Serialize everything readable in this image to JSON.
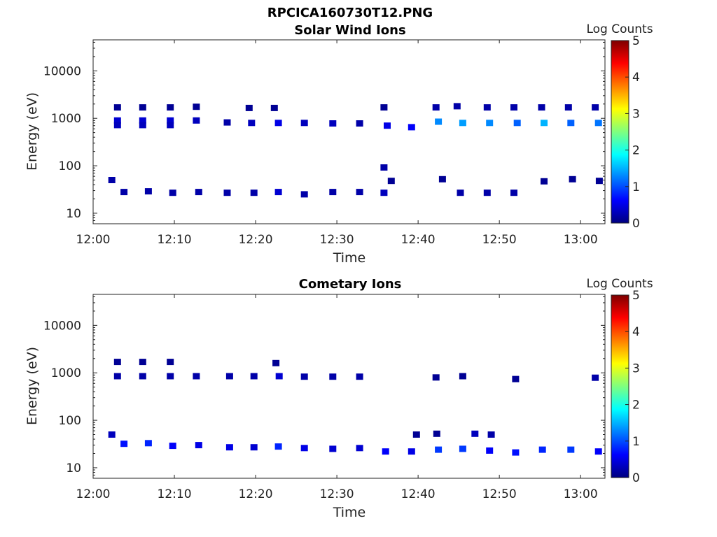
{
  "figure": {
    "main_title": "RPCICA160730T12.PNG"
  },
  "chart_data": [
    {
      "type": "heatmap",
      "title": "Solar Wind Ions",
      "xlabel": "Time",
      "ylabel": "Energy (eV)",
      "x_ticks": [
        "12:00",
        "12:10",
        "12:20",
        "12:30",
        "12:40",
        "12:50",
        "13:00"
      ],
      "x_range_minutes": [
        0,
        63
      ],
      "y_scale": "log",
      "y_range": [
        6,
        45000
      ],
      "y_ticks": [
        "10",
        "100",
        "1000",
        "10000"
      ],
      "colorbar": {
        "label": "Log Counts",
        "range": [
          0,
          5
        ],
        "ticks": [
          "0",
          "1",
          "2",
          "3",
          "4",
          "5"
        ]
      },
      "cells": [
        [
          3,
          1700,
          0.1
        ],
        [
          3,
          900,
          0.4
        ],
        [
          3,
          720,
          0.3
        ],
        [
          6.1,
          1700,
          0.1
        ],
        [
          6.1,
          900,
          0.4
        ],
        [
          6.1,
          720,
          0.3
        ],
        [
          9.5,
          1700,
          0.1
        ],
        [
          9.5,
          900,
          0.4
        ],
        [
          9.5,
          720,
          0.3
        ],
        [
          12.7,
          1750,
          0.1
        ],
        [
          12.7,
          900,
          0.3
        ],
        [
          16.5,
          820,
          0.2
        ],
        [
          19.2,
          1650,
          0.1
        ],
        [
          19.5,
          800,
          0.3
        ],
        [
          22.3,
          1650,
          0.1
        ],
        [
          22.8,
          800,
          0.5
        ],
        [
          26,
          800,
          0.3
        ],
        [
          29.5,
          780,
          0.3
        ],
        [
          32.8,
          780,
          0.2
        ],
        [
          35.8,
          1700,
          0.1
        ],
        [
          36.2,
          700,
          0.5
        ],
        [
          39.2,
          650,
          0.6
        ],
        [
          42.5,
          850,
          1.3
        ],
        [
          45.5,
          800,
          1.4
        ],
        [
          48.8,
          800,
          1.3
        ],
        [
          52.2,
          800,
          1.1
        ],
        [
          55.5,
          800,
          1.5
        ],
        [
          58.8,
          800,
          1.1
        ],
        [
          62.2,
          800,
          1.2
        ],
        [
          42.2,
          1700,
          0.2
        ],
        [
          44.8,
          1800,
          0.2
        ],
        [
          48.5,
          1700,
          0.2
        ],
        [
          51.8,
          1700,
          0.2
        ],
        [
          55.2,
          1700,
          0.2
        ],
        [
          58.5,
          1700,
          0.2
        ],
        [
          61.8,
          1700,
          0.2
        ],
        [
          2.3,
          50,
          0.2
        ],
        [
          3.8,
          28,
          0.2
        ],
        [
          6.8,
          29,
          0.2
        ],
        [
          9.8,
          27,
          0.2
        ],
        [
          13,
          28,
          0.2
        ],
        [
          16.5,
          27,
          0.2
        ],
        [
          19.8,
          27,
          0.2
        ],
        [
          22.8,
          28,
          0.4
        ],
        [
          26,
          25,
          0.2
        ],
        [
          29.5,
          28,
          0.2
        ],
        [
          32.8,
          28,
          0.2
        ],
        [
          35.8,
          92,
          0.2
        ],
        [
          35.8,
          27,
          0.3
        ],
        [
          36.7,
          48,
          0.1
        ],
        [
          43,
          52,
          0.1
        ],
        [
          45.2,
          27,
          0.2
        ],
        [
          48.5,
          27,
          0.2
        ],
        [
          51.8,
          27,
          0.2
        ],
        [
          55.5,
          47,
          0.1
        ],
        [
          59,
          52,
          0.1
        ],
        [
          62.3,
          48,
          0.1
        ]
      ]
    },
    {
      "type": "heatmap",
      "title": "Cometary Ions",
      "xlabel": "Time",
      "ylabel": "Energy (eV)",
      "x_ticks": [
        "12:00",
        "12:10",
        "12:20",
        "12:30",
        "12:40",
        "12:50",
        "13:00"
      ],
      "x_range_minutes": [
        0,
        63
      ],
      "y_scale": "log",
      "y_range": [
        6,
        45000
      ],
      "y_ticks": [
        "10",
        "100",
        "1000",
        "10000"
      ],
      "colorbar": {
        "label": "Log Counts",
        "range": [
          0,
          5
        ],
        "ticks": [
          "0",
          "1",
          "2",
          "3",
          "4",
          "5"
        ]
      },
      "cells": [
        [
          3,
          1700,
          0.1
        ],
        [
          3,
          850,
          0.2
        ],
        [
          6.1,
          1700,
          0.1
        ],
        [
          6.1,
          850,
          0.2
        ],
        [
          9.5,
          1700,
          0.1
        ],
        [
          9.5,
          850,
          0.2
        ],
        [
          12.7,
          850,
          0.2
        ],
        [
          16.8,
          850,
          0.2
        ],
        [
          19.8,
          850,
          0.2
        ],
        [
          22.5,
          1600,
          0.1
        ],
        [
          22.9,
          850,
          0.4
        ],
        [
          26,
          830,
          0.2
        ],
        [
          29.5,
          830,
          0.2
        ],
        [
          32.8,
          830,
          0.2
        ],
        [
          42.2,
          800,
          0.1
        ],
        [
          45.5,
          850,
          0.1
        ],
        [
          52,
          740,
          0.1
        ],
        [
          61.8,
          790,
          0.2
        ],
        [
          2.3,
          50,
          0.3
        ],
        [
          3.8,
          32,
          0.7
        ],
        [
          6.8,
          33,
          0.8
        ],
        [
          9.8,
          29,
          0.6
        ],
        [
          13,
          30,
          0.5
        ],
        [
          16.8,
          27,
          0.5
        ],
        [
          19.8,
          27,
          0.4
        ],
        [
          22.8,
          28,
          0.8
        ],
        [
          26,
          26,
          0.5
        ],
        [
          29.5,
          25,
          0.4
        ],
        [
          32.8,
          26,
          0.4
        ],
        [
          36,
          22,
          0.6
        ],
        [
          39.2,
          22,
          0.5
        ],
        [
          42.5,
          24,
          0.9
        ],
        [
          45.5,
          25,
          0.9
        ],
        [
          48.8,
          23,
          0.6
        ],
        [
          52,
          21,
          0.7
        ],
        [
          55.3,
          24,
          0.8
        ],
        [
          58.8,
          24,
          0.9
        ],
        [
          62.2,
          22,
          0.6
        ],
        [
          39.8,
          50,
          0.1
        ],
        [
          42.3,
          52,
          0.1
        ],
        [
          47,
          52,
          0.3
        ],
        [
          49,
          50,
          0.2
        ]
      ]
    }
  ]
}
